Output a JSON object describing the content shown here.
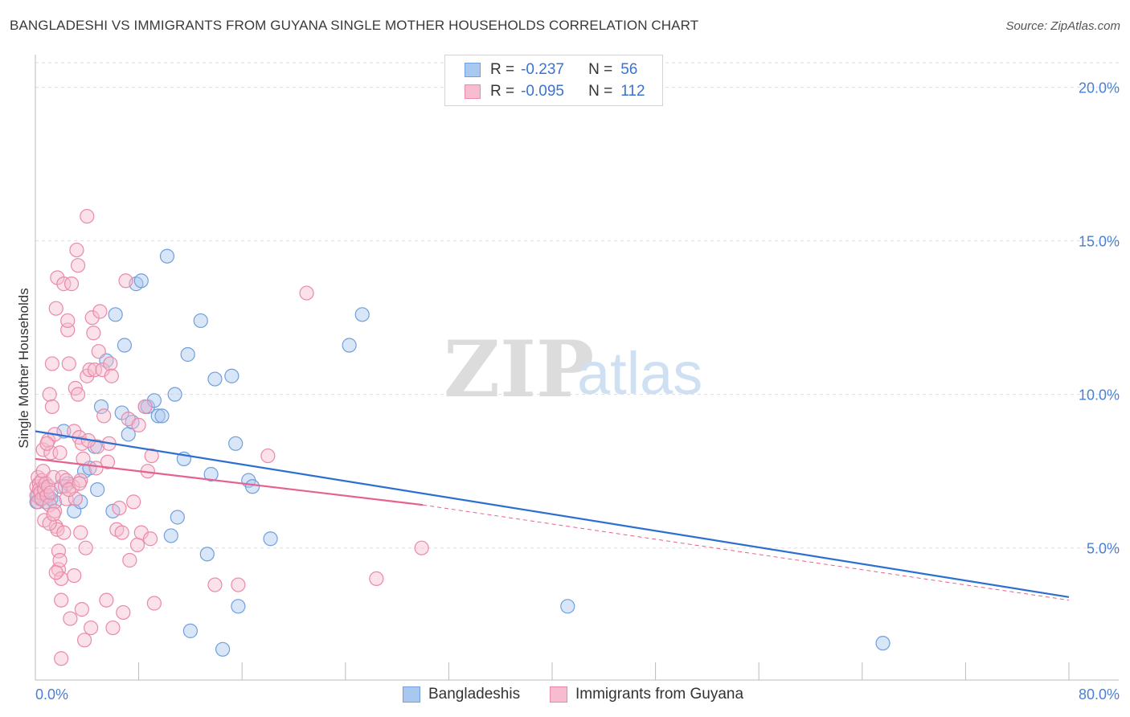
{
  "title": "BANGLADESHI VS IMMIGRANTS FROM GUYANA SINGLE MOTHER HOUSEHOLDS CORRELATION CHART",
  "source": "Source: ZipAtlas.com",
  "watermark": {
    "zip": "ZIP",
    "atlas": "atlas"
  },
  "legend": {
    "r_label": "R =",
    "n_label": "N =",
    "rows": [
      {
        "r": "-0.237",
        "n": "56",
        "color": "#a9c8f0",
        "stroke": "#6f9fdd"
      },
      {
        "r": "-0.095",
        "n": "112",
        "color": "#f7bccf",
        "stroke": "#e98aa8"
      }
    ]
  },
  "bottom_legend": [
    "Bangladeshis",
    "Immigrants from Guyana"
  ],
  "colors": {
    "blue": "#5b8fd8",
    "blue_line": "#2d6fd1",
    "pink": "#ec86a6",
    "pink_line": "#e5628e",
    "grid": "#dedede",
    "tick_text": "#4a7fd4"
  },
  "chart_data": {
    "type": "scatter",
    "title": "BANGLADESHI VS IMMIGRANTS FROM GUYANA SINGLE MOTHER HOUSEHOLDS CORRELATION CHART",
    "xlabel": "",
    "ylabel": "Single Mother Households",
    "xlim": [
      0,
      80
    ],
    "ylim": [
      0.7,
      20.8
    ],
    "x_tick_labels": [
      "0.0%",
      "80.0%"
    ],
    "y_ticks": [
      5,
      10,
      15,
      20
    ],
    "y_tick_labels": [
      "5.0%",
      "10.0%",
      "15.0%",
      "20.0%"
    ],
    "grid": true,
    "legend_position": "top-center",
    "series": [
      {
        "name": "Bangladeshis",
        "r": -0.237,
        "n": 56,
        "trend": {
          "x": [
            0,
            80
          ],
          "y": [
            8.8,
            3.4
          ]
        },
        "points": [
          [
            0.1,
            6.5
          ],
          [
            0.2,
            6.7
          ],
          [
            0.3,
            6.9
          ],
          [
            0.4,
            6.6
          ],
          [
            0.5,
            6.8
          ],
          [
            0.6,
            7.0
          ],
          [
            0.8,
            6.5
          ],
          [
            1.0,
            6.7
          ],
          [
            1.2,
            6.6
          ],
          [
            1.5,
            6.5
          ],
          [
            2.0,
            7.0
          ],
          [
            2.2,
            8.8
          ],
          [
            2.5,
            7.1
          ],
          [
            3.0,
            6.2
          ],
          [
            3.5,
            6.5
          ],
          [
            3.8,
            7.5
          ],
          [
            4.2,
            7.6
          ],
          [
            4.6,
            8.3
          ],
          [
            4.8,
            6.9
          ],
          [
            5.1,
            9.6
          ],
          [
            5.5,
            11.1
          ],
          [
            6.0,
            6.2
          ],
          [
            6.2,
            12.6
          ],
          [
            6.7,
            9.4
          ],
          [
            6.9,
            11.6
          ],
          [
            7.2,
            8.7
          ],
          [
            7.5,
            9.1
          ],
          [
            7.8,
            13.6
          ],
          [
            8.2,
            13.7
          ],
          [
            8.5,
            9.6
          ],
          [
            8.7,
            9.6
          ],
          [
            9.2,
            9.8
          ],
          [
            9.5,
            9.3
          ],
          [
            9.8,
            9.3
          ],
          [
            10.2,
            14.5
          ],
          [
            10.5,
            5.4
          ],
          [
            10.8,
            10.0
          ],
          [
            11.0,
            6.0
          ],
          [
            11.5,
            7.9
          ],
          [
            11.8,
            11.3
          ],
          [
            12.0,
            2.3
          ],
          [
            12.8,
            12.4
          ],
          [
            13.3,
            4.8
          ],
          [
            13.6,
            7.4
          ],
          [
            13.9,
            10.5
          ],
          [
            14.5,
            1.7
          ],
          [
            15.2,
            10.6
          ],
          [
            15.5,
            8.4
          ],
          [
            15.7,
            3.1
          ],
          [
            16.5,
            7.2
          ],
          [
            16.8,
            7.0
          ],
          [
            18.2,
            5.3
          ],
          [
            24.3,
            11.6
          ],
          [
            25.3,
            12.6
          ],
          [
            41.2,
            3.1
          ],
          [
            65.6,
            1.9
          ]
        ]
      },
      {
        "name": "Immigrants from Guyana",
        "r": -0.095,
        "n": 112,
        "trend": {
          "x": [
            0,
            30
          ],
          "y": [
            7.9,
            6.4
          ]
        },
        "trend_dashed": {
          "x": [
            30,
            80
          ],
          "y": [
            6.4,
            3.3
          ]
        },
        "points": [
          [
            0.1,
            7.0
          ],
          [
            0.1,
            6.7
          ],
          [
            0.2,
            7.3
          ],
          [
            0.2,
            6.5
          ],
          [
            0.3,
            7.1
          ],
          [
            0.3,
            6.9
          ],
          [
            0.4,
            6.8
          ],
          [
            0.5,
            7.2
          ],
          [
            0.5,
            6.6
          ],
          [
            0.6,
            8.2
          ],
          [
            0.6,
            7.5
          ],
          [
            0.7,
            5.9
          ],
          [
            0.7,
            6.9
          ],
          [
            0.8,
            7.1
          ],
          [
            0.9,
            6.7
          ],
          [
            1.0,
            8.5
          ],
          [
            1.0,
            7.0
          ],
          [
            1.1,
            10.0
          ],
          [
            1.1,
            6.4
          ],
          [
            1.2,
            8.1
          ],
          [
            1.2,
            6.8
          ],
          [
            1.3,
            9.6
          ],
          [
            1.3,
            11.0
          ],
          [
            1.4,
            7.3
          ],
          [
            1.5,
            8.7
          ],
          [
            1.5,
            6.2
          ],
          [
            1.6,
            5.7
          ],
          [
            1.6,
            12.8
          ],
          [
            1.7,
            5.6
          ],
          [
            1.7,
            13.8
          ],
          [
            1.8,
            4.9
          ],
          [
            1.8,
            4.3
          ],
          [
            1.9,
            4.6
          ],
          [
            1.9,
            8.1
          ],
          [
            2.0,
            4.0
          ],
          [
            2.0,
            3.3
          ],
          [
            2.0,
            1.4
          ],
          [
            2.1,
            7.3
          ],
          [
            2.2,
            13.6
          ],
          [
            2.3,
            7.0
          ],
          [
            2.4,
            6.6
          ],
          [
            2.5,
            12.1
          ],
          [
            2.5,
            12.4
          ],
          [
            2.6,
            11.0
          ],
          [
            2.7,
            2.7
          ],
          [
            2.8,
            13.6
          ],
          [
            2.9,
            7.0
          ],
          [
            3.0,
            8.8
          ],
          [
            3.0,
            4.1
          ],
          [
            3.1,
            10.2
          ],
          [
            3.2,
            14.7
          ],
          [
            3.3,
            10.0
          ],
          [
            3.3,
            14.2
          ],
          [
            3.4,
            8.6
          ],
          [
            3.5,
            7.2
          ],
          [
            3.5,
            5.5
          ],
          [
            3.6,
            8.4
          ],
          [
            3.6,
            3.0
          ],
          [
            3.7,
            7.9
          ],
          [
            3.8,
            2.0
          ],
          [
            3.9,
            5.0
          ],
          [
            4.0,
            10.6
          ],
          [
            4.0,
            15.8
          ],
          [
            4.2,
            10.8
          ],
          [
            4.3,
            2.4
          ],
          [
            4.4,
            12.5
          ],
          [
            4.5,
            12.0
          ],
          [
            4.6,
            10.8
          ],
          [
            4.7,
            7.6
          ],
          [
            4.8,
            8.3
          ],
          [
            4.9,
            11.4
          ],
          [
            5.0,
            12.7
          ],
          [
            5.2,
            10.8
          ],
          [
            5.3,
            9.3
          ],
          [
            5.5,
            3.3
          ],
          [
            5.6,
            7.8
          ],
          [
            5.7,
            8.4
          ],
          [
            5.8,
            11.0
          ],
          [
            5.9,
            10.6
          ],
          [
            6.0,
            2.4
          ],
          [
            6.3,
            5.6
          ],
          [
            6.5,
            6.3
          ],
          [
            6.7,
            5.5
          ],
          [
            6.8,
            2.9
          ],
          [
            7.0,
            13.7
          ],
          [
            7.2,
            9.2
          ],
          [
            7.3,
            4.6
          ],
          [
            7.6,
            6.5
          ],
          [
            7.9,
            5.1
          ],
          [
            8.0,
            9.0
          ],
          [
            8.2,
            5.5
          ],
          [
            8.5,
            9.6
          ],
          [
            8.7,
            7.5
          ],
          [
            8.9,
            5.3
          ],
          [
            9.0,
            8.0
          ],
          [
            9.2,
            3.2
          ],
          [
            13.9,
            3.8
          ],
          [
            15.7,
            3.8
          ],
          [
            18.0,
            8.0
          ],
          [
            21.0,
            13.3
          ],
          [
            26.4,
            4.0
          ],
          [
            29.9,
            5.0
          ],
          [
            1.1,
            5.8
          ],
          [
            1.4,
            6.1
          ],
          [
            0.9,
            8.4
          ],
          [
            2.4,
            7.2
          ],
          [
            3.1,
            6.6
          ],
          [
            4.1,
            8.5
          ],
          [
            2.6,
            6.9
          ],
          [
            1.6,
            4.2
          ],
          [
            3.4,
            7.1
          ],
          [
            2.2,
            5.5
          ]
        ]
      }
    ]
  }
}
